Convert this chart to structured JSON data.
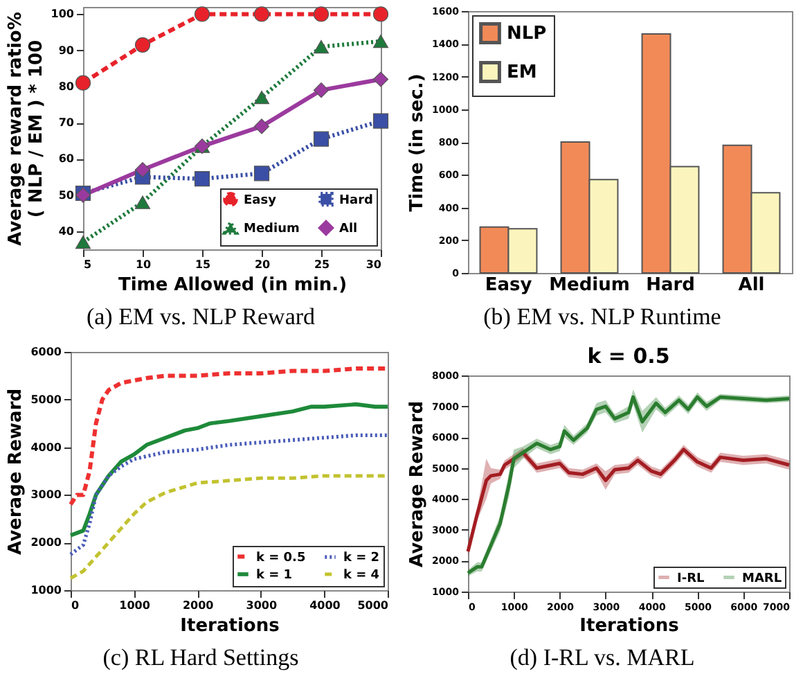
{
  "chart_data": [
    {
      "type": "line",
      "xlabel": "Time Allowed (in min.)",
      "ylabel": "Average reward ratio%\n( NLP / EM ) * 100",
      "annotations": [
        "(a) EM vs. NLP Reward"
      ],
      "x": [
        5,
        10,
        15,
        20,
        25,
        30
      ],
      "xlim": [
        5,
        30
      ],
      "xticks": [
        5,
        10,
        15,
        20,
        25,
        30
      ],
      "ylim": [
        35,
        102
      ],
      "yticks": [
        40,
        50,
        60,
        70,
        80,
        90,
        100
      ],
      "legend": "bottom right",
      "grid": false,
      "series": [
        {
          "name": "Easy",
          "color": "#e8222a",
          "marker": "circle",
          "line_style": "dashed",
          "values": [
            81,
            91.5,
            100,
            100,
            100,
            100
          ]
        },
        {
          "name": "Medium",
          "color": "#1e7a3c",
          "marker": "triangle",
          "line_style": "dotted",
          "values": [
            37,
            48,
            63.5,
            77,
            91,
            92.5
          ]
        },
        {
          "name": "Hard",
          "color": "#3a4fa5",
          "marker": "square",
          "line_style": "dotted",
          "values": [
            50.5,
            55,
            54.5,
            56,
            65.5,
            70.5
          ]
        },
        {
          "name": "All",
          "color": "#9b3a9e",
          "marker": "diamond",
          "line_style": "solid",
          "values": [
            50,
            57,
            63.5,
            69,
            79,
            82
          ]
        }
      ]
    },
    {
      "type": "bar",
      "ylabel": "Time (in sec.)",
      "annotations": [
        "(b) EM vs. NLP Runtime"
      ],
      "categories": [
        "Easy",
        "Medium",
        "Hard",
        "All"
      ],
      "ylim": [
        0,
        1600
      ],
      "yticks": [
        0,
        200,
        400,
        600,
        800,
        1000,
        1200,
        1400,
        1600
      ],
      "legend": "top left",
      "grid": false,
      "series": [
        {
          "name": "NLP",
          "color": "#f28a58",
          "values": [
            280,
            800,
            1460,
            780
          ]
        },
        {
          "name": "EM",
          "color": "#fbf5bd",
          "values": [
            270,
            570,
            650,
            490
          ]
        }
      ]
    },
    {
      "type": "line",
      "xlabel": "Iterations",
      "ylabel": "Average Reward",
      "annotations": [
        "(c) RL Hard Settings"
      ],
      "xlim": [
        0,
        5000
      ],
      "xticks": [
        0,
        1000,
        2000,
        3000,
        4000,
        5000
      ],
      "ylim": [
        1000,
        6000
      ],
      "yticks": [
        1000,
        2000,
        3000,
        4000,
        5000,
        6000
      ],
      "legend": "bottom right",
      "grid": false,
      "series": [
        {
          "name": "k = 0.5",
          "color": "#ee3030",
          "line_style": "dashed",
          "x": [
            0,
            100,
            200,
            300,
            400,
            500,
            600,
            800,
            1000,
            1200,
            1500,
            2000,
            2500,
            3000,
            3500,
            4000,
            4500,
            5000
          ],
          "values": [
            2800,
            3000,
            3000,
            3500,
            4500,
            5000,
            5200,
            5350,
            5400,
            5450,
            5500,
            5500,
            5550,
            5550,
            5600,
            5600,
            5650,
            5650
          ]
        },
        {
          "name": "k = 1",
          "color": "#1e8a3a",
          "line_style": "solid",
          "x": [
            0,
            200,
            300,
            400,
            600,
            800,
            1000,
            1200,
            1500,
            1800,
            2000,
            2200,
            2500,
            3000,
            3500,
            3800,
            4000,
            4500,
            4800,
            5000
          ],
          "values": [
            2150,
            2250,
            2600,
            3000,
            3400,
            3700,
            3850,
            4050,
            4200,
            4350,
            4400,
            4500,
            4550,
            4650,
            4750,
            4850,
            4850,
            4900,
            4850,
            4850
          ]
        },
        {
          "name": "k = 2",
          "color": "#4a5cb8",
          "line_style": "dotted",
          "x": [
            0,
            200,
            300,
            400,
            600,
            800,
            1000,
            1500,
            2000,
            2500,
            3000,
            3500,
            4000,
            4500,
            5000
          ],
          "values": [
            1750,
            1950,
            2400,
            3000,
            3400,
            3600,
            3750,
            3900,
            3950,
            4050,
            4100,
            4150,
            4200,
            4250,
            4250
          ]
        },
        {
          "name": "k = 4",
          "color": "#c2c230",
          "line_style": "dashed",
          "x": [
            0,
            200,
            400,
            600,
            800,
            1000,
            1200,
            1500,
            2000,
            2500,
            3000,
            3500,
            4000,
            5000
          ],
          "values": [
            1250,
            1400,
            1700,
            2000,
            2300,
            2600,
            2850,
            3050,
            3250,
            3300,
            3350,
            3350,
            3400,
            3400
          ]
        }
      ]
    },
    {
      "type": "line",
      "title": "k = 0.5",
      "xlabel": "Iterations",
      "ylabel": "Average Reward",
      "annotations": [
        "(d) I-RL vs. MARL"
      ],
      "xlim": [
        0,
        7000
      ],
      "xticks": [
        0,
        1000,
        2000,
        3000,
        4000,
        5000,
        6000,
        7000
      ],
      "ylim": [
        1000,
        8000
      ],
      "yticks": [
        1000,
        2000,
        3000,
        4000,
        5000,
        6000,
        7000,
        8000
      ],
      "legend": "bottom right",
      "grid": false,
      "series": [
        {
          "name": "I-RL",
          "color": "#a31d22",
          "x": [
            0,
            200,
            400,
            500,
            700,
            800,
            1000,
            1200,
            1500,
            2000,
            2200,
            2500,
            2800,
            3000,
            3200,
            3500,
            3700,
            4000,
            4200,
            4500,
            4700,
            5000,
            5300,
            5500,
            6000,
            6500,
            7000
          ],
          "values": [
            2300,
            3500,
            4600,
            4750,
            4800,
            5100,
            5300,
            5500,
            5000,
            5150,
            4850,
            4800,
            5000,
            4600,
            4950,
            5000,
            5250,
            4900,
            4800,
            5250,
            5600,
            5200,
            5000,
            5350,
            5250,
            5300,
            5100
          ],
          "lower": [
            2150,
            3300,
            4000,
            4500,
            4650,
            4950,
            5150,
            5350,
            4850,
            5000,
            4700,
            4650,
            4850,
            4300,
            4800,
            4850,
            5100,
            4750,
            4650,
            5100,
            5450,
            5050,
            4850,
            5200,
            5100,
            5150,
            4950
          ],
          "upper": [
            2450,
            3700,
            5300,
            5000,
            4950,
            5250,
            5450,
            5650,
            5150,
            5300,
            5000,
            4950,
            5150,
            4900,
            5100,
            5150,
            5400,
            5050,
            4950,
            5400,
            5750,
            5350,
            5150,
            5500,
            5400,
            5450,
            5250
          ]
        },
        {
          "name": "MARL",
          "color": "#2a7d2f",
          "x": [
            0,
            200,
            300,
            500,
            700,
            900,
            1000,
            1200,
            1500,
            1800,
            2000,
            2100,
            2300,
            2600,
            2800,
            3000,
            3200,
            3500,
            3600,
            3800,
            4100,
            4300,
            4600,
            4800,
            5000,
            5200,
            5500,
            6000,
            6500,
            7000
          ],
          "values": [
            1600,
            1800,
            1800,
            2500,
            3200,
            4500,
            5300,
            5500,
            5800,
            5600,
            5700,
            6200,
            5900,
            6300,
            6900,
            7000,
            6600,
            6800,
            7300,
            6500,
            7100,
            6800,
            7200,
            6900,
            7300,
            7000,
            7300,
            7250,
            7200,
            7250
          ],
          "lower": [
            1500,
            1650,
            1650,
            2300,
            2950,
            4100,
            5000,
            5300,
            5650,
            5450,
            5550,
            6000,
            5750,
            6150,
            6700,
            6800,
            6450,
            6600,
            7050,
            6150,
            6900,
            6650,
            7050,
            6750,
            7150,
            6850,
            7200,
            7150,
            7100,
            7150
          ],
          "upper": [
            1700,
            1950,
            1950,
            2700,
            3450,
            4900,
            5600,
            5700,
            5950,
            5750,
            5850,
            6400,
            6050,
            6450,
            7100,
            7200,
            6750,
            7000,
            7550,
            6850,
            7300,
            6950,
            7350,
            7050,
            7450,
            7150,
            7400,
            7350,
            7300,
            7350
          ]
        }
      ]
    }
  ]
}
